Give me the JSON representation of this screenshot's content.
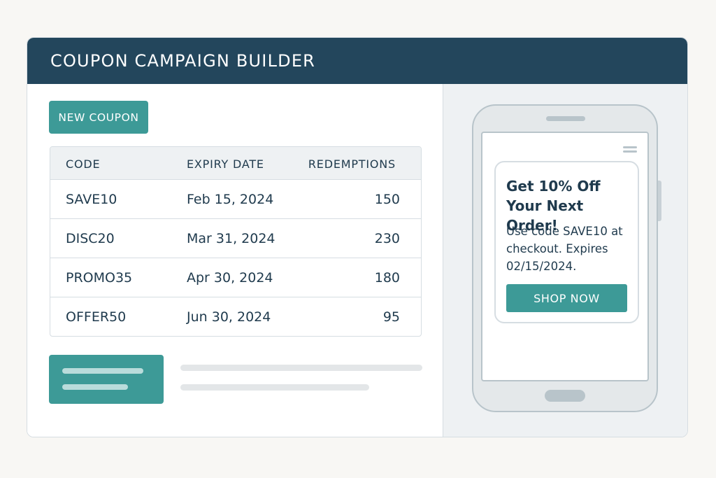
{
  "app": {
    "title": "COUPON CAMPAIGN BUILDER"
  },
  "toolbar": {
    "new_coupon_label": "NEW COUPON"
  },
  "table": {
    "headers": {
      "code": "CODE",
      "expiry": "EXPIRY DATE",
      "redemptions": "REDEMPTIONS"
    },
    "rows": [
      {
        "code": "SAVE10",
        "expiry": "Feb 15, 2024",
        "redemptions": "150"
      },
      {
        "code": "DISC20",
        "expiry": "Mar 31, 2024",
        "redemptions": "230"
      },
      {
        "code": "PROMO35",
        "expiry": "Apr 30, 2024",
        "redemptions": "180"
      },
      {
        "code": "OFFER50",
        "expiry": "Jun 30, 2024",
        "redemptions": "95"
      }
    ]
  },
  "preview": {
    "headline": "Get 10% Off Your Next Order!",
    "body": "Use code SAVE10 at checkout. Expires 02/15/2024.",
    "cta_label": "SHOP NOW"
  },
  "colors": {
    "header": "#23465c",
    "accent": "#3d9a97",
    "border": "#d6dde2"
  }
}
